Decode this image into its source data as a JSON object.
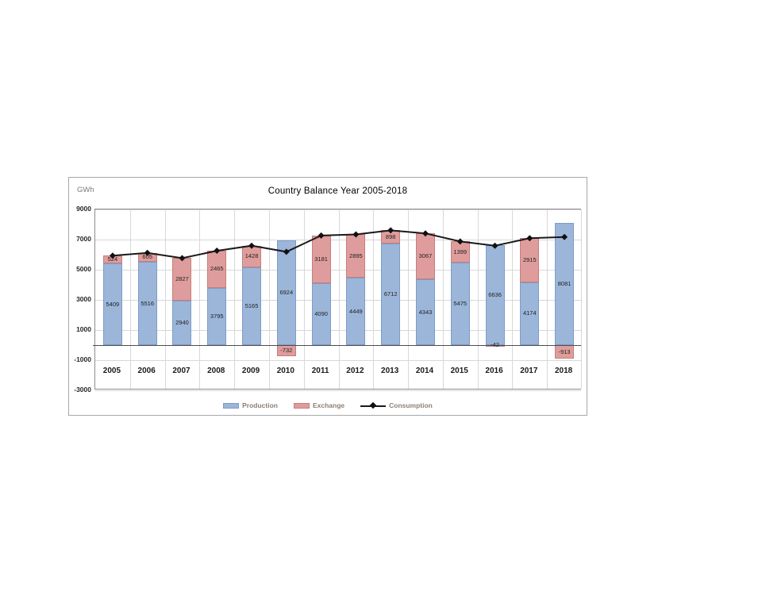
{
  "page": {
    "background": "#ffffff"
  },
  "chart_data": {
    "type": "bar",
    "subtype": "stacked-bar-with-line",
    "title": "Country Balance Year 2005-2018",
    "ylabel": "GWh",
    "xlabel": "",
    "categories": [
      "2005",
      "2006",
      "2007",
      "2008",
      "2009",
      "2010",
      "2011",
      "2012",
      "2013",
      "2014",
      "2015",
      "2016",
      "2017",
      "2018"
    ],
    "series": [
      {
        "name": "Production",
        "type": "bar",
        "values": [
          5409,
          5516,
          2940,
          3795,
          5165,
          6924,
          4090,
          4449,
          6712,
          4343,
          5475,
          6636,
          4174,
          8081
        ],
        "color": "#9cb6da",
        "border_color": "#7e9cc8"
      },
      {
        "name": "Exchange",
        "type": "bar",
        "values": [
          524,
          605,
          2827,
          2465,
          1428,
          -732,
          3181,
          2895,
          898,
          3067,
          1399,
          -42,
          2915,
          -913
        ],
        "color": "#de9d9c",
        "border_color": "#c87d7b"
      },
      {
        "name": "Consumption",
        "type": "line",
        "values": [
          5933,
          6121,
          5767,
          6260,
          6593,
          6192,
          7271,
          7344,
          7610,
          7410,
          6874,
          6594,
          7089,
          7168
        ],
        "color": "#1a1a1a",
        "marker": "diamond"
      }
    ],
    "stacked": true,
    "ylim": [
      -3000,
      9000
    ],
    "yticks": [
      9000,
      7000,
      5000,
      3000,
      1000,
      -1000,
      -3000
    ],
    "grid": true,
    "legend_position": "bottom",
    "data_labels": true
  },
  "colors": {
    "grid": "#d8d8d8",
    "zero_line": "#4d4d4d",
    "axis_text": "#262626",
    "legend_text": "#8d7f76",
    "panel_border": "#a8a8a8"
  }
}
